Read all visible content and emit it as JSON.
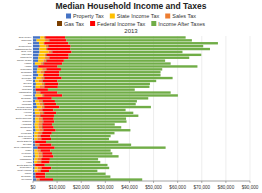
{
  "chart_data": {
    "type": "bar",
    "orientation": "horizontal",
    "stacked": true,
    "title": "Median Household Income and Taxes",
    "subtitle": "2013",
    "categories": [
      "New Jersey",
      "California",
      "DC",
      "Connecticut",
      "Massachusetts",
      "New York",
      "Maryland",
      "Minnesota",
      "Rhode Island",
      "Hawaii",
      "Alaska",
      "Wisconsin",
      "Nebraska",
      "Vermont",
      "Colorado",
      "Utah",
      "Oregon",
      "Kansas",
      "Montana",
      "Washington",
      "Virginia",
      "Delaware",
      "Georgia",
      "Michigan",
      "Pennsylvania",
      "South Carolina",
      "Arizona",
      "Texas",
      "North Carolina",
      "Missouri",
      "Arkansas",
      "Oklahoma",
      "Ohio",
      "Louisiana",
      "New Mexico",
      "Alabama",
      "North Dakota",
      "Nevada",
      "New Hampshire",
      "Idaho",
      "Kentucky",
      "Indiana",
      "Mississippi",
      "Iowa",
      "South Dakota",
      "Tennessee",
      "West Virginia",
      "Maine",
      "Delaware",
      "Wyoming"
    ],
    "series": [
      {
        "name": "Property Tax",
        "color": "#4472c4",
        "values": [
          3000,
          1500,
          2500,
          2800,
          2600,
          2700,
          2400,
          2200,
          2100,
          800,
          2000,
          1800,
          1600,
          2200,
          1400,
          900,
          1200,
          1100,
          1000,
          1300,
          1000,
          1500,
          900,
          1300,
          1600,
          700,
          800,
          1100,
          900,
          1000,
          700,
          800,
          1100,
          600,
          600,
          600,
          700,
          900,
          1800,
          600,
          700,
          800,
          600,
          500,
          700,
          700,
          600,
          900,
          900,
          1400
        ]
      },
      {
        "name": "State Income Tax",
        "color": "#ffc000",
        "values": [
          1500,
          3500,
          2000,
          2500,
          3000,
          3800,
          2500,
          2800,
          2200,
          2500,
          0,
          2000,
          1500,
          2000,
          2000,
          1500,
          2500,
          1800,
          0,
          0,
          2500,
          0,
          1500,
          1500,
          2000,
          1500,
          2000,
          0,
          1500,
          1500,
          1500,
          1500,
          1500,
          1500,
          1200,
          1200,
          0,
          0,
          0,
          1200,
          1500,
          1500,
          1200,
          1200,
          0,
          1200,
          1200,
          0,
          0,
          0
        ]
      },
      {
        "name": "Sales Tax",
        "color": "#ed7d31",
        "values": [
          500,
          1500,
          0,
          1000,
          0,
          1200,
          600,
          1500,
          1200,
          1000,
          0,
          1500,
          1500,
          0,
          1200,
          1500,
          1000,
          1600,
          0,
          1500,
          800,
          0,
          1500,
          1500,
          1000,
          1500,
          1500,
          1800,
          1500,
          1500,
          1500,
          1500,
          1500,
          1500,
          1200,
          1500,
          0,
          1500,
          0,
          1200,
          1500,
          1500,
          1500,
          1500,
          0,
          1500,
          1200,
          0,
          0,
          1200
        ]
      },
      {
        "name": "Gas Tax",
        "color": "#7b3f00",
        "values": [
          300,
          400,
          200,
          300,
          300,
          300,
          300,
          300,
          300,
          300,
          200,
          300,
          300,
          200,
          300,
          200,
          300,
          300,
          200,
          300,
          300,
          300,
          200,
          300,
          300,
          200,
          300,
          300,
          200,
          300,
          200,
          300,
          300,
          200,
          200,
          200,
          200,
          300,
          200,
          200,
          200,
          200,
          200,
          200,
          200,
          200,
          200,
          200,
          200,
          200
        ]
      },
      {
        "name": "Federal Income Tax",
        "color": "#ff0000",
        "values": [
          8000,
          7000,
          10000,
          9000,
          9500,
          8000,
          9000,
          8000,
          7000,
          7500,
          8000,
          6000,
          6000,
          6500,
          7000,
          6000,
          5500,
          5500,
          5000,
          7000,
          7500,
          6000,
          5000,
          5000,
          6000,
          4500,
          5000,
          5500,
          4500,
          4500,
          4000,
          4500,
          5000,
          4000,
          4000,
          4000,
          4500,
          5000,
          7000,
          4000,
          4000,
          4500,
          3500,
          3500,
          4000,
          4000,
          3500,
          4000,
          4000,
          5500
        ]
      },
      {
        "name": "Income After Taxes",
        "color": "#70ad47",
        "values": [
          50000,
          52000,
          62000,
          55000,
          58000,
          46000,
          55000,
          50000,
          42000,
          45000,
          58000,
          42000,
          42000,
          42000,
          46000,
          41000,
          38000,
          38000,
          36000,
          47000,
          48000,
          40000,
          34000,
          33000,
          38000,
          30000,
          32000,
          35000,
          30000,
          30000,
          26000,
          28000,
          31000,
          26000,
          25000,
          24000,
          30000,
          33000,
          46000,
          25000,
          25000,
          27000,
          20000,
          21000,
          26000,
          24000,
          20000,
          25000,
          27000,
          37000
        ]
      }
    ],
    "xlim": [
      0,
      90000
    ],
    "xticks": [
      {
        "value": 0,
        "label": "$0"
      },
      {
        "value": 10000,
        "label": "$10,000"
      },
      {
        "value": 20000,
        "label": "$20,000"
      },
      {
        "value": 30000,
        "label": "$30,000"
      },
      {
        "value": 40000,
        "label": "$40,000"
      },
      {
        "value": 50000,
        "label": "$50,000"
      },
      {
        "value": 60000,
        "label": "$60,000"
      },
      {
        "value": 70000,
        "label": "$70,000"
      },
      {
        "value": 80000,
        "label": "$80,000"
      },
      {
        "value": 90000,
        "label": "$90,000"
      }
    ],
    "grid": true,
    "legend": "top"
  }
}
